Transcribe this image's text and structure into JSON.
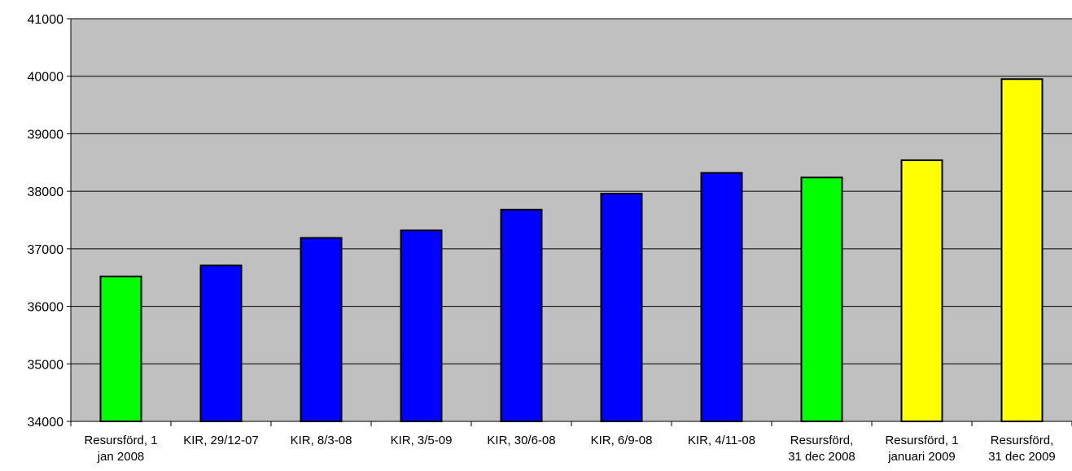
{
  "chart_data": {
    "type": "bar",
    "title": "",
    "xlabel": "",
    "ylabel": "",
    "ylim": [
      34000,
      41000
    ],
    "y_ticks": [
      34000,
      35000,
      36000,
      37000,
      38000,
      39000,
      40000,
      41000
    ],
    "grid": true,
    "legend": "none",
    "plot_background": "#c0c0c0",
    "categories": [
      "Resursförd, 1 jan 2008",
      "KIR, 29/12-07",
      "KIR, 8/3-08",
      "KIR, 3/5-09",
      "KIR, 30/6-08",
      "KIR, 6/9-08",
      "KIR, 4/11-08",
      "Resursförd, 31 dec 2008",
      "Resursförd, 1 januari 2009",
      "Resursförd, 31 dec 2009"
    ],
    "category_label_lines": [
      [
        "Resursförd, 1",
        "jan 2008"
      ],
      [
        "KIR, 29/12-07"
      ],
      [
        "KIR, 8/3-08"
      ],
      [
        "KIR, 3/5-09"
      ],
      [
        "KIR, 30/6-08"
      ],
      [
        "KIR, 6/9-08"
      ],
      [
        "KIR, 4/11-08"
      ],
      [
        "Resursförd,",
        "31 dec 2008"
      ],
      [
        "Resursförd, 1",
        "januari 2009"
      ],
      [
        "Resursförd,",
        "31 dec 2009"
      ]
    ],
    "values": [
      36520,
      36710,
      37190,
      37320,
      37680,
      37960,
      38320,
      38240,
      38540,
      39950
    ],
    "bar_colors": [
      "#00ff00",
      "#0000ff",
      "#0000ff",
      "#0000ff",
      "#0000ff",
      "#0000ff",
      "#0000ff",
      "#00ff00",
      "#ffff00",
      "#ffff00"
    ]
  }
}
